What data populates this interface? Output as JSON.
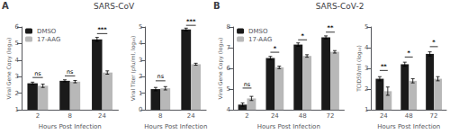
{
  "chart_data": [
    {
      "type": "bar",
      "title": "SARS-CoV",
      "panel_label": "A",
      "xlabel": "Hours Post Infection",
      "ylabel": "Viral Gene Copy (log₁₀)",
      "categories": [
        "2",
        "8",
        "24"
      ],
      "series": [
        {
          "name": "DMSO",
          "color": "#1a1a1a",
          "values": [
            2.6,
            2.75,
            5.25
          ],
          "errors": [
            0.07,
            0.06,
            0.12
          ]
        },
        {
          "name": "17-AAG",
          "color": "#b8b8b8",
          "values": [
            2.45,
            2.7,
            3.25
          ],
          "errors": [
            0.1,
            0.07,
            0.1
          ]
        }
      ],
      "ylim": [
        1,
        6
      ],
      "yticks": [
        1,
        2,
        3,
        4,
        5,
        6
      ],
      "grid": false,
      "legend": "upper left",
      "annotations": [
        {
          "category": "2",
          "y": 2.95,
          "text": "ns"
        },
        {
          "category": "8",
          "y": 3.05,
          "text": "ns"
        },
        {
          "category": "24",
          "y": 5.6,
          "text": "***"
        }
      ]
    },
    {
      "type": "bar",
      "xlabel": "Hours Post Infection",
      "ylabel": "Viral Titer (pfu/ml, log₁₀)",
      "categories": [
        "8",
        "24"
      ],
      "series": [
        {
          "name": "DMSO",
          "color": "#1a1a1a",
          "values": [
            1.25,
            4.85
          ],
          "errors": [
            0.1,
            0.08
          ]
        },
        {
          "name": "17-AAG",
          "color": "#b8b8b8",
          "values": [
            1.3,
            2.75
          ],
          "errors": [
            0.1,
            0.06
          ]
        }
      ],
      "ylim": [
        0,
        5
      ],
      "yticks": [
        0,
        1,
        2,
        3,
        4,
        5
      ],
      "grid": false,
      "annotations": [
        {
          "category": "8",
          "y": 1.75,
          "text": "ns"
        },
        {
          "category": "24",
          "y": 5.1,
          "text": "***"
        }
      ]
    },
    {
      "type": "bar",
      "title": "SARS-CoV-2",
      "panel_label": "B",
      "xlabel": "Hours Post Infection",
      "ylabel": "Viral Gene Copy (log₁₀)",
      "categories": [
        "2",
        "24",
        "48",
        "72"
      ],
      "series": [
        {
          "name": "DMSO",
          "color": "#1a1a1a",
          "values": [
            4.25,
            6.5,
            7.15,
            7.5
          ],
          "errors": [
            0.08,
            0.08,
            0.08,
            0.07
          ]
        },
        {
          "name": "17-AAG",
          "color": "#b8b8b8",
          "values": [
            4.55,
            6.05,
            6.6,
            6.8
          ],
          "errors": [
            0.1,
            0.06,
            0.06,
            0.06
          ]
        }
      ],
      "ylim": [
        4,
        8
      ],
      "yticks": [
        4,
        5,
        6,
        7,
        8
      ],
      "grid": false,
      "legend": "upper left",
      "annotations": [
        {
          "category": "2",
          "y": 5.05,
          "text": "ns"
        },
        {
          "category": "24",
          "y": 6.78,
          "text": "*"
        },
        {
          "category": "48",
          "y": 7.38,
          "text": "*"
        },
        {
          "category": "72",
          "y": 7.75,
          "text": "**"
        }
      ]
    },
    {
      "type": "bar",
      "xlabel": "Hours Post Infection",
      "ylabel": "TCID50/ml (log₁₀)",
      "categories": [
        "24",
        "48",
        "72"
      ],
      "series": [
        {
          "name": "DMSO",
          "color": "#1a1a1a",
          "values": [
            2.5,
            3.2,
            3.7
          ],
          "errors": [
            0.1,
            0.1,
            0.1
          ]
        },
        {
          "name": "17-AAG",
          "color": "#b8b8b8",
          "values": [
            1.9,
            2.4,
            2.5
          ],
          "errors": [
            0.2,
            0.1,
            0.1
          ]
        }
      ],
      "ylim": [
        1,
        5
      ],
      "yticks": [
        1,
        2,
        3,
        4,
        5
      ],
      "grid": false,
      "annotations": [
        {
          "category": "24",
          "y": 2.9,
          "text": "**"
        },
        {
          "category": "48",
          "y": 3.55,
          "text": "*"
        },
        {
          "category": "72",
          "y": 4.05,
          "text": "*"
        }
      ]
    }
  ]
}
